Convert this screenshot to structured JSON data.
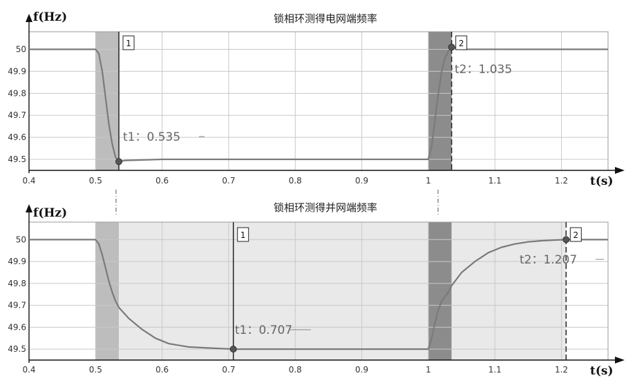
{
  "chart_data": [
    {
      "type": "line",
      "title": "锁相环测得电网端频率",
      "ylabel": "f(Hz)",
      "xlabel": "t(s)",
      "xlim": [
        0.4,
        1.27
      ],
      "ylim": [
        49.45,
        50.08
      ],
      "xticks": [
        "0.4",
        "0.5",
        "0.6",
        "0.7",
        "0.8",
        "0.9",
        "1",
        "1.1",
        "1.2"
      ],
      "yticks": [
        "50",
        "49.9",
        "49.8",
        "49.7",
        "49.6",
        "49.5"
      ],
      "grid": true,
      "series": [
        {
          "x": [
            0.4,
            0.5,
            0.505,
            0.51,
            0.515,
            0.52,
            0.525,
            0.53,
            0.535,
            0.545,
            0.6,
            0.8,
            1.0,
            1.005,
            1.01,
            1.015,
            1.02,
            1.025,
            1.03,
            1.035,
            1.05,
            1.27
          ],
          "y": [
            50.0,
            50.0,
            49.98,
            49.9,
            49.78,
            49.66,
            49.57,
            49.51,
            49.49,
            49.495,
            49.5,
            49.5,
            49.5,
            49.56,
            49.68,
            49.8,
            49.9,
            49.96,
            49.99,
            50.01,
            50.0,
            50.0
          ]
        }
      ],
      "shaded": [
        {
          "x0": 0.5,
          "x1": 0.535,
          "level": "medium"
        },
        {
          "x0": 1.0,
          "x1": 1.035,
          "level": "dark"
        }
      ],
      "cursors": [
        {
          "label": "1",
          "x": 0.535,
          "y": 49.49,
          "readout": "t1：0.535"
        },
        {
          "label": "2",
          "x": 1.035,
          "y": 50.01,
          "readout": "t2：1.035"
        }
      ]
    },
    {
      "type": "line",
      "title": "锁相环测得并网端频率",
      "ylabel": "f(Hz)",
      "xlabel": "t(s)",
      "xlim": [
        0.4,
        1.27
      ],
      "ylim": [
        49.45,
        50.08
      ],
      "xticks": [
        "0.4",
        "0.5",
        "0.6",
        "0.7",
        "0.8",
        "0.9",
        "1",
        "1.1",
        "1.2"
      ],
      "yticks": [
        "50",
        "49.9",
        "49.8",
        "49.7",
        "49.6",
        "49.5"
      ],
      "grid": true,
      "series": [
        {
          "x": [
            0.4,
            0.5,
            0.505,
            0.51,
            0.515,
            0.52,
            0.525,
            0.53,
            0.535,
            0.55,
            0.57,
            0.59,
            0.61,
            0.64,
            0.67,
            0.707,
            0.75,
            0.8,
            0.85,
            0.9,
            0.95,
            1.0,
            1.005,
            1.01,
            1.015,
            1.02,
            1.03,
            1.035,
            1.05,
            1.07,
            1.09,
            1.11,
            1.13,
            1.15,
            1.17,
            1.19,
            1.207,
            1.27
          ],
          "y": [
            50.0,
            50.0,
            49.98,
            49.93,
            49.87,
            49.81,
            49.76,
            49.72,
            49.69,
            49.64,
            49.59,
            49.55,
            49.525,
            49.51,
            49.505,
            49.5,
            49.5,
            49.5,
            49.5,
            49.5,
            49.5,
            49.5,
            49.55,
            49.62,
            49.68,
            49.72,
            49.76,
            49.79,
            49.85,
            49.9,
            49.94,
            49.965,
            49.98,
            49.99,
            49.995,
            49.998,
            50.0,
            50.0
          ]
        }
      ],
      "shaded": [
        {
          "x0": 0.5,
          "x1": 0.535,
          "level": "medium"
        },
        {
          "x0": 0.535,
          "x1": 1.0,
          "level": "light"
        },
        {
          "x0": 1.0,
          "x1": 1.035,
          "level": "dark"
        },
        {
          "x0": 1.035,
          "x1": 1.207,
          "level": "light"
        }
      ],
      "cursors": [
        {
          "label": "1",
          "x": 0.707,
          "y": 49.5,
          "readout": "t1：0.707"
        },
        {
          "label": "2",
          "x": 1.207,
          "y": 50.0,
          "readout": "t2：1.207"
        }
      ]
    }
  ]
}
